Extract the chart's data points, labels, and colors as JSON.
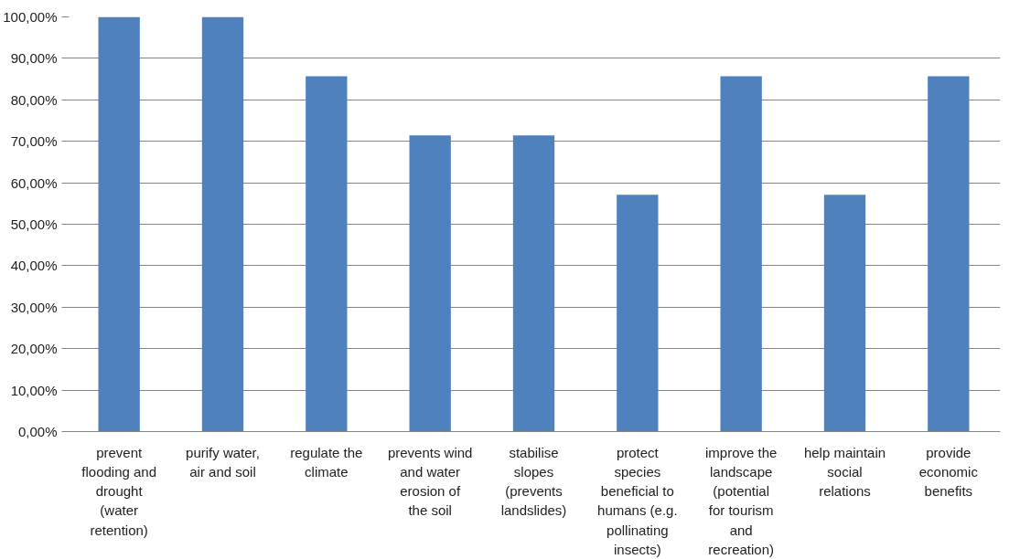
{
  "chart_data": {
    "type": "bar",
    "categories": [
      "prevent flooding and drought (water retention)",
      "purify water, air and soil",
      "regulate the climate",
      "prevents wind and water erosion of the soil",
      "stabilise slopes (prevents landslides)",
      "protect species beneficial to humans (e.g. pollinating insects)",
      "improve the landscape (potential for tourism and recreation)",
      "help maintain social relations",
      "provide economic benefits"
    ],
    "values": [
      100,
      100,
      85.7,
      71.4,
      71.4,
      57.1,
      85.7,
      57.1,
      85.7
    ],
    "color": "#4f81bd",
    "ylim": [
      0,
      100
    ],
    "yticks": [
      {
        "value": 0,
        "label": "0,00%"
      },
      {
        "value": 10,
        "label": "10,00%"
      },
      {
        "value": 20,
        "label": "20,00%"
      },
      {
        "value": 30,
        "label": "30,00%"
      },
      {
        "value": 40,
        "label": "40,00%"
      },
      {
        "value": 50,
        "label": "50,00%"
      },
      {
        "value": 60,
        "label": "60,00%"
      },
      {
        "value": 70,
        "label": "70,00%"
      },
      {
        "value": 80,
        "label": "80,00%"
      },
      {
        "value": 90,
        "label": "90,00%"
      },
      {
        "value": 100,
        "label": "100,00%"
      }
    ],
    "grid": "y"
  }
}
